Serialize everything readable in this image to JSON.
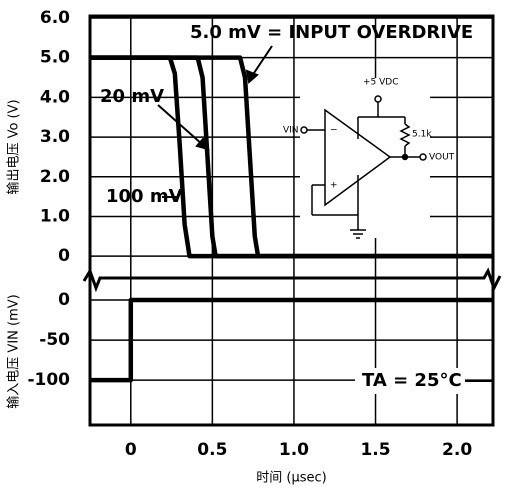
{
  "chart_data": [
    {
      "type": "line",
      "ylabel": "输出电压 Vo (V)",
      "xlim": [
        -0.25,
        2.22
      ],
      "ylim": [
        -0.55,
        6.05
      ],
      "yticks": [
        0,
        {
          "value": 1,
          "label": "1.0"
        },
        {
          "value": 2,
          "label": "2.0"
        },
        {
          "value": 3,
          "label": "3.0"
        },
        {
          "value": 4,
          "label": "4.0"
        },
        {
          "value": 5,
          "label": "5.0"
        },
        {
          "value": 6,
          "label": "6.0"
        }
      ],
      "grid": true,
      "series": [
        {
          "name": "5.0 mV = INPUT OVERDRIVE",
          "color": "#000000",
          "x": [
            -0.25,
            0.67,
            0.7,
            0.73,
            0.76,
            0.78,
            2.22
          ],
          "values": [
            5,
            5,
            4.5,
            2.5,
            0.5,
            0,
            0
          ]
        },
        {
          "name": "20 mV",
          "color": "#000000",
          "x": [
            -0.25,
            0.41,
            0.44,
            0.47,
            0.5,
            0.52,
            2.22
          ],
          "values": [
            5,
            5,
            4.5,
            2.5,
            0.5,
            0,
            0
          ]
        },
        {
          "name": "100 mV",
          "color": "#000000",
          "x": [
            -0.25,
            0.24,
            0.27,
            0.3,
            0.33,
            0.36,
            2.22
          ],
          "values": [
            5,
            5,
            4.6,
            2.8,
            0.8,
            0,
            0
          ]
        }
      ]
    },
    {
      "type": "line",
      "ylabel": "输入电压 VIN (mV)",
      "xlabel": "时间 (μsec)",
      "xlim": [
        -0.25,
        2.22
      ],
      "ylim": [
        -156,
        27.5
      ],
      "xticks": [
        0,
        0.5,
        {
          "value": 1,
          "label": "1.0"
        },
        1.5,
        {
          "value": 2,
          "label": "2.0"
        }
      ],
      "yticks": [
        0,
        -50,
        -100
      ],
      "grid": true,
      "series": [
        {
          "name": "VIN",
          "color": "#000000",
          "x": [
            -0.25,
            0,
            0,
            2.22
          ],
          "values": [
            -100,
            -100,
            0,
            0
          ]
        }
      ]
    }
  ],
  "annotations": {
    "temperature": "TA = 25°C"
  },
  "circuit": {
    "supply": "+5 VDC",
    "input": "VIN",
    "resistor": "5.1k",
    "output": "VOUT"
  }
}
